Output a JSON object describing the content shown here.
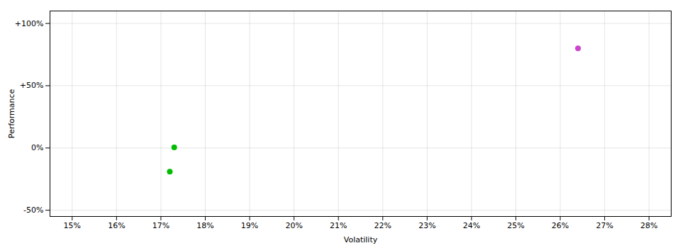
{
  "chart_data": {
    "type": "scatter",
    "xlabel": "Volatility",
    "ylabel": "Performance",
    "x": [
      0.264,
      0.173,
      0.172
    ],
    "values": [
      0.8,
      0.005,
      -0.19
    ],
    "colors": [
      "#cc44cc",
      "#00bb00",
      "#00bb00"
    ],
    "xlim": [
      0.145,
      0.285
    ],
    "ylim": [
      -0.55,
      1.1
    ],
    "xticks": [
      {
        "value": 0.15,
        "label": "15%"
      },
      {
        "value": 0.16,
        "label": "16%"
      },
      {
        "value": 0.17,
        "label": "17%"
      },
      {
        "value": 0.18,
        "label": "18%"
      },
      {
        "value": 0.19,
        "label": "19%"
      },
      {
        "value": 0.2,
        "label": "20%"
      },
      {
        "value": 0.21,
        "label": "21%"
      },
      {
        "value": 0.22,
        "label": "22%"
      },
      {
        "value": 0.23,
        "label": "23%"
      },
      {
        "value": 0.24,
        "label": "24%"
      },
      {
        "value": 0.25,
        "label": "25%"
      },
      {
        "value": 0.26,
        "label": "26%"
      },
      {
        "value": 0.27,
        "label": "27%"
      },
      {
        "value": 0.28,
        "label": "28%"
      }
    ],
    "yticks": [
      {
        "value": -0.5,
        "label": "-50%"
      },
      {
        "value": 0.0,
        "label": "0%"
      },
      {
        "value": 0.5,
        "label": "+50%"
      },
      {
        "value": 1.0,
        "label": "+100%"
      }
    ],
    "grid": true
  }
}
